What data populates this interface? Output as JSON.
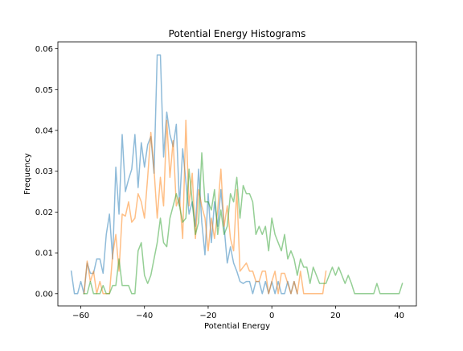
{
  "chart_data": {
    "type": "line",
    "title": "Potential Energy Histograms",
    "xlabel": "Potential Energy",
    "ylabel": "Frequency",
    "xlim": [
      -67.2,
      45.4
    ],
    "ylim": [
      -0.003,
      0.0617
    ],
    "xticks": [
      -60,
      -40,
      -20,
      0,
      20,
      40
    ],
    "xtick_labels": [
      "−60",
      "−40",
      "−20",
      "0",
      "20",
      "40"
    ],
    "yticks": [
      0,
      0.01,
      0.02,
      0.03,
      0.04,
      0.05,
      0.06
    ],
    "ytick_labels": [
      "0.00",
      "0.01",
      "0.02",
      "0.03",
      "0.04",
      "0.05",
      "0.06"
    ],
    "grid": false,
    "series": [
      {
        "color": "#1f77b4",
        "opacity": 0.5,
        "x": [
          -63,
          -62,
          -61,
          -60,
          -59,
          -58,
          -57,
          -56,
          -55,
          -54,
          -53,
          -52,
          -51,
          -50,
          -49,
          -48,
          -47,
          -46,
          -45,
          -44,
          -43,
          -42,
          -41,
          -40,
          -39,
          -38,
          -37,
          -36,
          -35,
          -34,
          -33,
          -32,
          -31,
          -30,
          -29,
          -28,
          -27,
          -26,
          -25,
          -24,
          -23,
          -22,
          -21,
          -20,
          -19,
          -18,
          -17,
          -16,
          -15,
          -14,
          -13,
          -12,
          -11,
          -10,
          -9,
          -8,
          -7,
          -6,
          -5,
          -4,
          -3,
          -2,
          -1,
          0,
          1,
          2,
          3,
          4,
          5,
          6,
          7,
          8
        ],
        "y": [
          0.0055,
          0.0,
          0.0,
          0.003,
          0.0,
          0.0075,
          0.005,
          0.005,
          0.0085,
          0.0085,
          0.005,
          0.0145,
          0.0195,
          0.0085,
          0.031,
          0.0195,
          0.039,
          0.025,
          0.028,
          0.0305,
          0.039,
          0.026,
          0.037,
          0.031,
          0.0365,
          0.0385,
          0.0295,
          0.0585,
          0.0585,
          0.0335,
          0.0445,
          0.039,
          0.036,
          0.0415,
          0.0215,
          0.0355,
          0.0275,
          0.0195,
          0.0225,
          0.0165,
          0.0305,
          0.0175,
          0.0095,
          0.0245,
          0.0125,
          0.0225,
          0.0165,
          0.0255,
          0.0165,
          0.0075,
          0.0115,
          0.0075,
          0.0055,
          0.003,
          0.0025,
          0.003,
          0.003,
          0.0,
          0.003,
          0.003,
          0.0,
          0.003,
          0.0,
          0.003,
          0.0,
          0.003,
          0.0,
          0.0,
          0.003,
          0.0,
          0.003,
          0.0
        ]
      },
      {
        "color": "#ff7f0e",
        "opacity": 0.5,
        "x": [
          -59,
          -58,
          -57,
          -56,
          -55,
          -54,
          -53,
          -52,
          -51,
          -50,
          -49,
          -48,
          -47,
          -46,
          -45,
          -44,
          -43,
          -42,
          -41,
          -40,
          -39,
          -38,
          -37,
          -36,
          -35,
          -34,
          -33,
          -32,
          -31,
          -30,
          -29,
          -28,
          -27,
          -26,
          -25,
          -24,
          -23,
          -22,
          -21,
          -20,
          -19,
          -18,
          -17,
          -16,
          -15,
          -14,
          -13,
          -12,
          -11,
          -10,
          -9,
          -8,
          -7,
          -6,
          -5,
          -4,
          -3,
          -2,
          -1,
          0,
          1,
          2,
          3,
          4,
          5,
          6,
          7,
          8,
          9,
          10,
          11,
          12,
          13,
          14,
          15,
          16,
          17
        ],
        "y": [
          0.0,
          0.008,
          0.003,
          0.0055,
          0.0,
          0.003,
          0.0,
          0.0,
          0.0,
          0.0095,
          0.0145,
          0.0055,
          0.0195,
          0.019,
          0.0225,
          0.0175,
          0.0185,
          0.0245,
          0.0225,
          0.0185,
          0.0285,
          0.0395,
          0.0305,
          0.0185,
          0.0285,
          0.0215,
          0.0425,
          0.0285,
          0.0375,
          0.0215,
          0.0235,
          0.0135,
          0.0425,
          0.0215,
          0.0295,
          0.0135,
          0.0255,
          0.0215,
          0.0185,
          0.0105,
          0.0185,
          0.0135,
          0.0205,
          0.0305,
          0.0165,
          0.0215,
          0.0135,
          0.0105,
          0.0255,
          0.0055,
          0.0065,
          0.0075,
          0.0055,
          0.0055,
          0.003,
          0.003,
          0.0055,
          0.0055,
          0.0,
          0.003,
          0.0055,
          0.0,
          0.005,
          0.005,
          0.0025,
          0.0,
          0.003,
          0.0,
          0.0055,
          0.0,
          0.0,
          0.0,
          0.0,
          0.0,
          0.0,
          0.0,
          0.0055
        ]
      },
      {
        "color": "#2ca02c",
        "opacity": 0.5,
        "x": [
          -59,
          -58,
          -57,
          -56,
          -55,
          -54,
          -53,
          -52,
          -51,
          -50,
          -49,
          -48,
          -47,
          -46,
          -45,
          -44,
          -43,
          -42,
          -41,
          -40,
          -39,
          -38,
          -37,
          -36,
          -35,
          -34,
          -33,
          -32,
          -31,
          -30,
          -29,
          -28,
          -27,
          -26,
          -25,
          -24,
          -23,
          -22,
          -21,
          -20,
          -19,
          -18,
          -17,
          -16,
          -15,
          -14,
          -13,
          -12,
          -11,
          -10,
          -9,
          -8,
          -7,
          -6,
          -5,
          -4,
          -3,
          -2,
          -1,
          0,
          1,
          2,
          3,
          4,
          5,
          6,
          7,
          8,
          9,
          10,
          11,
          12,
          13,
          14,
          15,
          16,
          17,
          18,
          19,
          20,
          21,
          22,
          23,
          24,
          25,
          26,
          27,
          28,
          29,
          30,
          31,
          32,
          33,
          34,
          35,
          36,
          37,
          38,
          39,
          40,
          41
        ],
        "y": [
          0.0,
          0.0,
          0.003,
          0.0,
          0.0,
          0.0,
          0.002,
          0.0,
          0.0,
          0.002,
          0.002,
          0.0085,
          0.002,
          0.002,
          0.002,
          0.0,
          0.0,
          0.0105,
          0.0125,
          0.0045,
          0.0025,
          0.0045,
          0.0085,
          0.0125,
          0.0185,
          0.0125,
          0.0115,
          0.0185,
          0.0215,
          0.0245,
          0.0215,
          0.0175,
          0.0185,
          0.0305,
          0.0225,
          0.0145,
          0.0175,
          0.0345,
          0.0225,
          0.0225,
          0.0205,
          0.0255,
          0.0145,
          0.0205,
          0.0145,
          0.0165,
          0.0245,
          0.0225,
          0.0285,
          0.0185,
          0.0265,
          0.0245,
          0.0245,
          0.0225,
          0.0145,
          0.0165,
          0.0145,
          0.0165,
          0.0105,
          0.0185,
          0.0145,
          0.0125,
          0.0105,
          0.0145,
          0.0085,
          0.0105,
          0.0085,
          0.0045,
          0.0085,
          0.0065,
          0.0065,
          0.0025,
          0.0065,
          0.0045,
          0.0025,
          0.0025,
          0.0025,
          0.0045,
          0.0065,
          0.0045,
          0.0065,
          0.0045,
          0.0025,
          0.0045,
          0.0025,
          0.0,
          0.0,
          0.0,
          0.0,
          0.0,
          0.0,
          0.0,
          0.0025,
          0.0,
          0.0,
          0.0,
          0.0,
          0.0,
          0.0,
          0.0,
          0.0025
        ]
      }
    ]
  }
}
